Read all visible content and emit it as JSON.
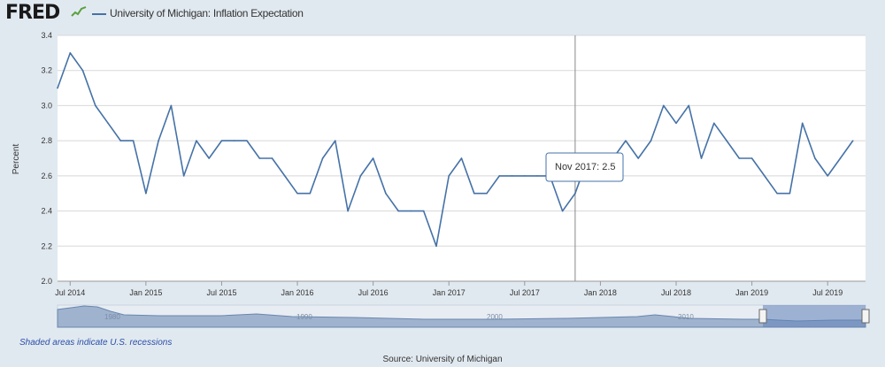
{
  "header": {
    "logo_text": "FRED",
    "series_label": "University of Michigan: Inflation Expectation"
  },
  "tooltip": {
    "text": "Nov 2017: 2.5"
  },
  "footer": {
    "recession_note": "Shaded areas indicate U.S. recessions",
    "source": "Source: University of Michigan"
  },
  "colors": {
    "line": "#4572a7",
    "plot_bg": "#ffffff",
    "page_bg": "#e1e9f0",
    "grid": "#d8d8d8",
    "navigator_fill": "#9fb3cf",
    "navigator_selected": "#5f82b8"
  },
  "icons": {
    "logo_mark": "fred-chart-icon"
  },
  "chart_data": {
    "type": "line",
    "ylabel": "Percent",
    "ylim": [
      2.0,
      3.4
    ],
    "yticks": [
      "2.0",
      "2.2",
      "2.4",
      "2.6",
      "2.8",
      "3.0",
      "3.2",
      "3.4"
    ],
    "xlim": [
      "2014-06",
      "2019-10"
    ],
    "xticks": [
      {
        "label": "Jul 2014",
        "x": "2014-07"
      },
      {
        "label": "Jan 2015",
        "x": "2015-01"
      },
      {
        "label": "Jul 2015",
        "x": "2015-07"
      },
      {
        "label": "Jan 2016",
        "x": "2016-01"
      },
      {
        "label": "Jul 2016",
        "x": "2016-07"
      },
      {
        "label": "Jan 2017",
        "x": "2017-01"
      },
      {
        "label": "Jul 2017",
        "x": "2017-07"
      },
      {
        "label": "Jan 2018",
        "x": "2018-01"
      },
      {
        "label": "Jul 2018",
        "x": "2018-07"
      },
      {
        "label": "Jan 2019",
        "x": "2019-01"
      },
      {
        "label": "Jul 2019",
        "x": "2019-07"
      }
    ],
    "grid": true,
    "crosshair": "2017-11",
    "series": [
      {
        "name": "University of Michigan: Inflation Expectation",
        "x": [
          "2014-06",
          "2014-07",
          "2014-08",
          "2014-09",
          "2014-10",
          "2014-11",
          "2014-12",
          "2015-01",
          "2015-02",
          "2015-03",
          "2015-04",
          "2015-05",
          "2015-06",
          "2015-07",
          "2015-08",
          "2015-09",
          "2015-10",
          "2015-11",
          "2015-12",
          "2016-01",
          "2016-02",
          "2016-03",
          "2016-04",
          "2016-05",
          "2016-06",
          "2016-07",
          "2016-08",
          "2016-09",
          "2016-10",
          "2016-11",
          "2016-12",
          "2017-01",
          "2017-02",
          "2017-03",
          "2017-04",
          "2017-05",
          "2017-06",
          "2017-07",
          "2017-08",
          "2017-09",
          "2017-10",
          "2017-11",
          "2017-12",
          "2018-01",
          "2018-02",
          "2018-03",
          "2018-04",
          "2018-05",
          "2018-06",
          "2018-07",
          "2018-08",
          "2018-09",
          "2018-10",
          "2018-11",
          "2018-12",
          "2019-01",
          "2019-02",
          "2019-03",
          "2019-04",
          "2019-05",
          "2019-06",
          "2019-07",
          "2019-08",
          "2019-09"
        ],
        "values": [
          3.1,
          3.3,
          3.2,
          3.0,
          2.9,
          2.8,
          2.8,
          2.5,
          2.8,
          3.0,
          2.6,
          2.8,
          2.7,
          2.8,
          2.8,
          2.8,
          2.7,
          2.7,
          2.6,
          2.5,
          2.5,
          2.7,
          2.8,
          2.4,
          2.6,
          2.7,
          2.5,
          2.4,
          2.4,
          2.4,
          2.2,
          2.6,
          2.7,
          2.5,
          2.5,
          2.6,
          2.6,
          2.6,
          2.6,
          2.6,
          2.4,
          2.5,
          2.7,
          2.7,
          2.7,
          2.8,
          2.7,
          2.8,
          3.0,
          2.9,
          3.0,
          2.7,
          2.9,
          2.8,
          2.7,
          2.7,
          2.6,
          2.5,
          2.5,
          2.9,
          2.7,
          2.6,
          2.7,
          2.8
        ]
      }
    ]
  },
  "navigator": {
    "labels": [
      "1980",
      "1990",
      "2000",
      "2010"
    ]
  }
}
